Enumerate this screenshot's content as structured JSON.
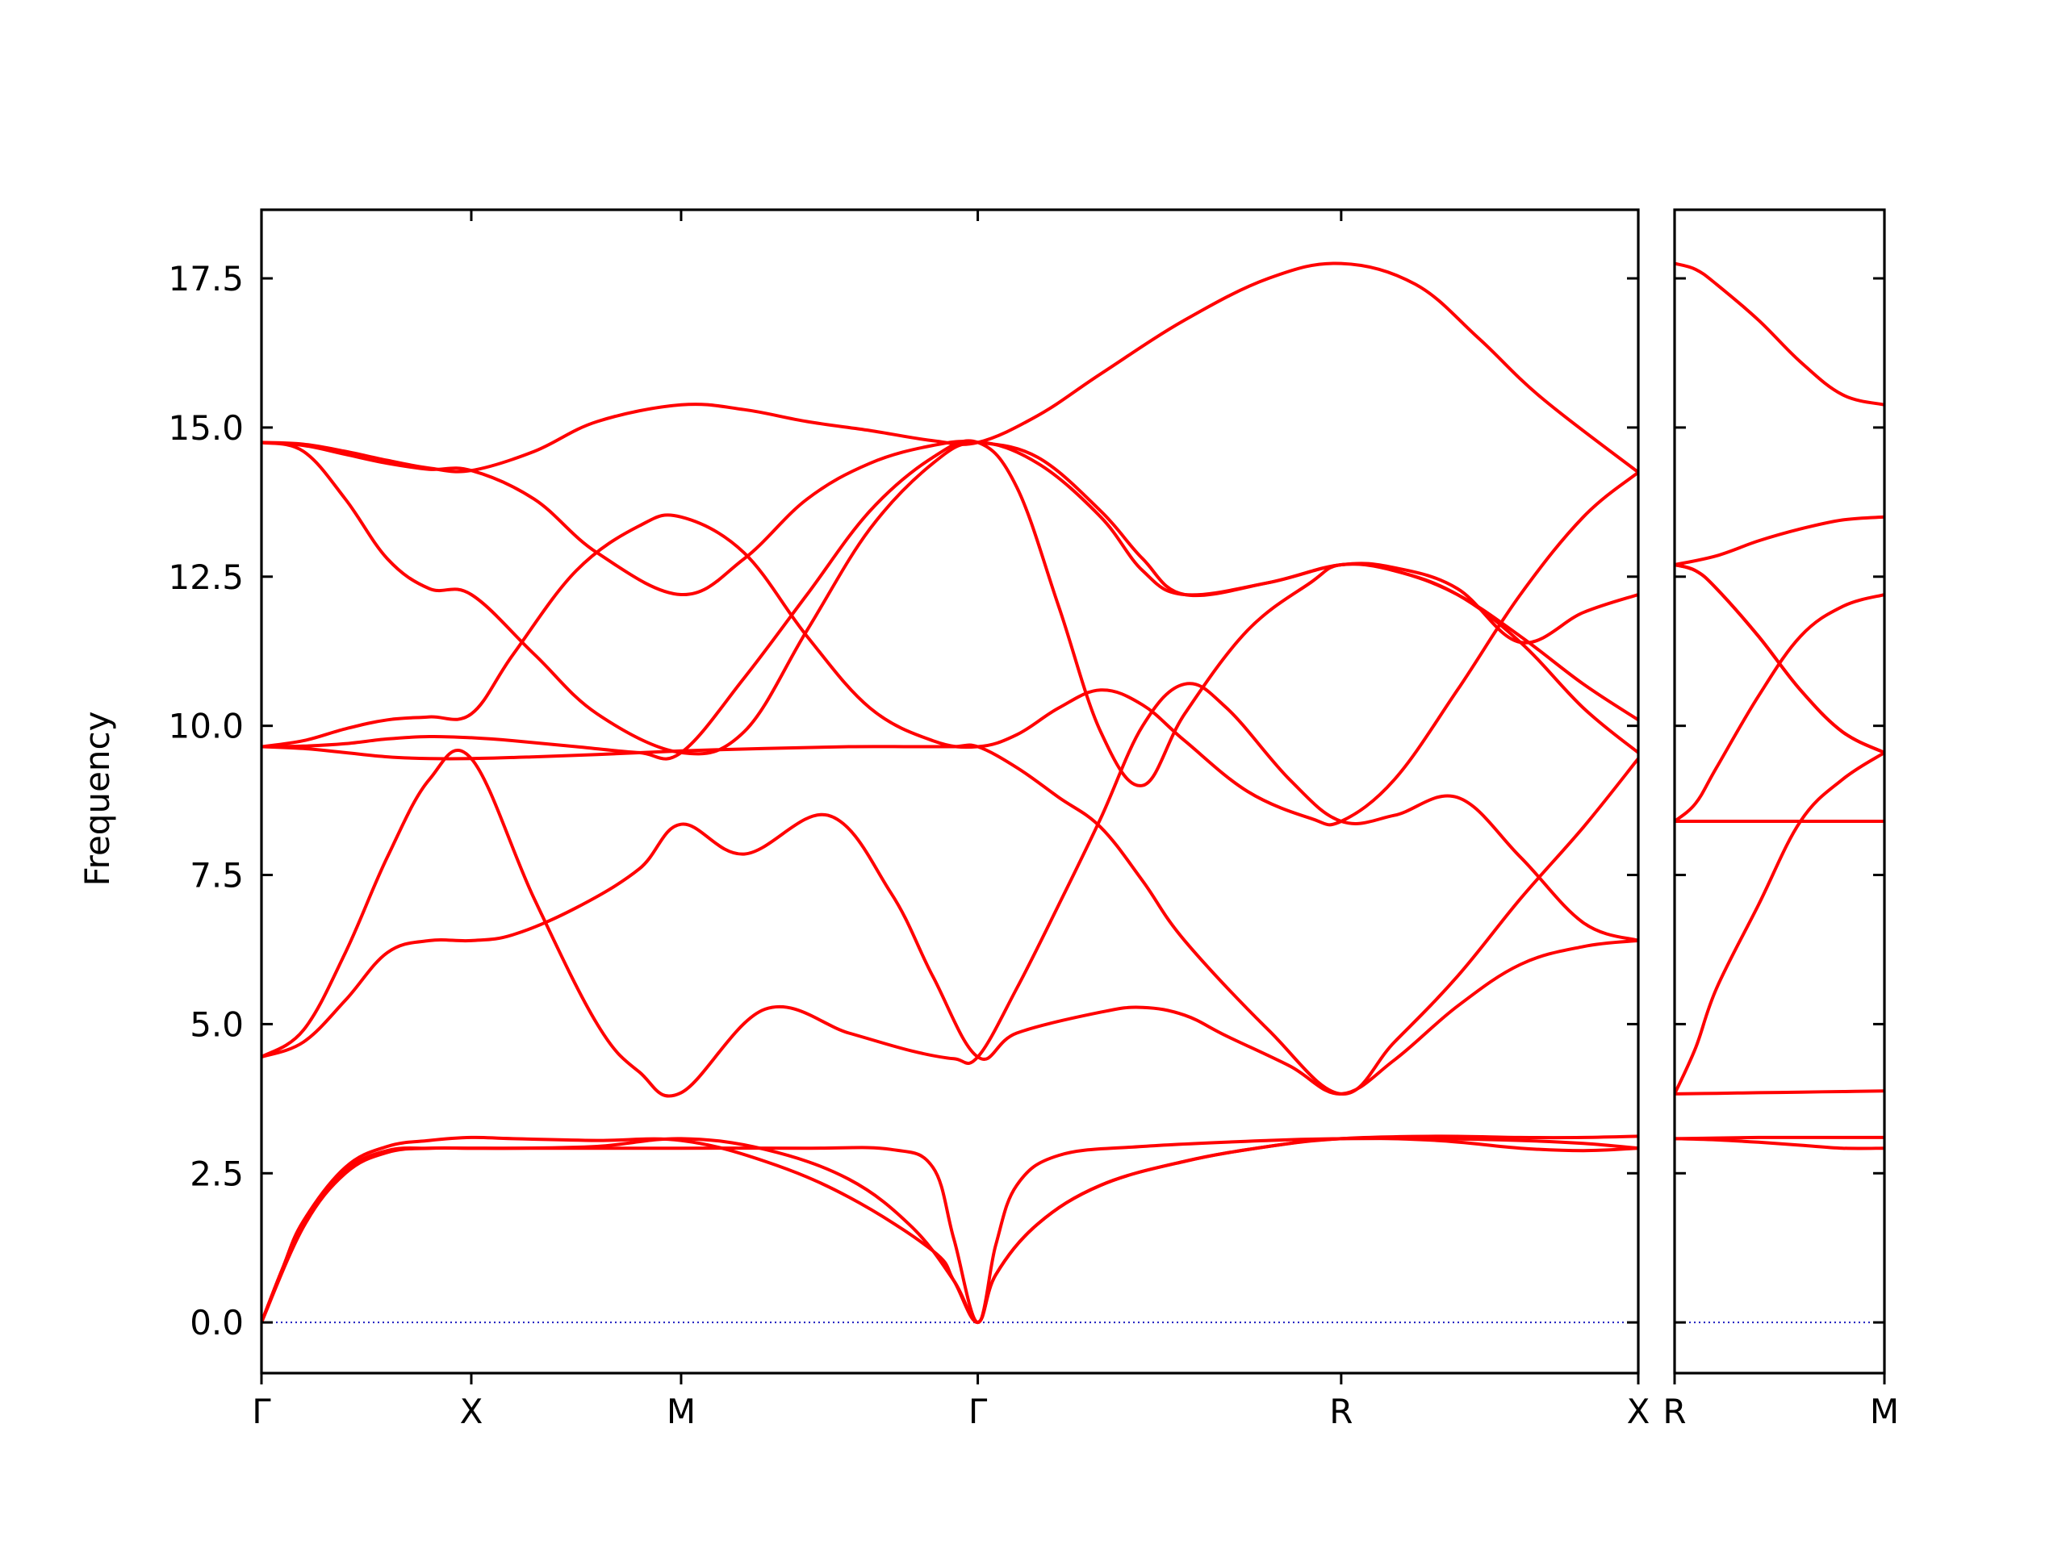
{
  "colors": {
    "band": "#ff0000",
    "zero_line": "#1f1fc0",
    "frame": "#000000"
  },
  "chart_data": {
    "type": "line",
    "title": "",
    "ylabel": "Frequency",
    "ylim": [
      -0.85,
      18.65
    ],
    "yticks": [
      "0.0",
      "2.5",
      "5.0",
      "7.5",
      "10.0",
      "12.5",
      "15.0",
      "17.5"
    ],
    "ytick_values": [
      0,
      2.5,
      5,
      7.5,
      10,
      12.5,
      15,
      17.5
    ],
    "zero_line": 0,
    "grid": false,
    "legend": "none",
    "panels": [
      {
        "path_labels": [
          "Γ",
          "X",
          "M",
          "Γ",
          "R",
          "X"
        ],
        "path_positions": [
          0,
          0.5,
          1.0,
          1.707,
          2.573,
          3.281
        ],
        "series": [
          {
            "x": [
              0,
              0.1,
              0.2,
              0.3,
              0.4,
              0.5,
              0.6,
              0.75,
              0.9,
              1.0,
              1.3,
              1.5,
              1.6,
              1.65,
              1.707,
              1.75,
              1.8,
              1.9,
              2.1,
              2.4,
              2.573,
              2.8,
              3.0,
              3.15,
              3.281
            ],
            "values": [
              0,
              1.6,
              2.5,
              2.85,
              2.92,
              2.92,
              2.92,
              2.92,
              2.92,
              2.92,
              2.92,
              2.9,
              2.6,
              1.4,
              0,
              1.3,
              2.3,
              2.8,
              2.95,
              3.05,
              3.08,
              3.08,
              3.05,
              3.0,
              2.92
            ]
          },
          {
            "x": [
              0,
              0.05,
              0.1,
              0.2,
              0.3,
              0.4,
              0.5,
              0.6,
              0.8,
              1.0,
              1.2,
              1.4,
              1.55,
              1.65,
              1.707,
              1.75,
              1.85,
              2.0,
              2.2,
              2.4,
              2.573,
              2.8,
              3.0,
              3.15,
              3.281
            ],
            "values": [
              0,
              0.9,
              1.7,
              2.55,
              2.88,
              2.92,
              2.92,
              2.92,
              2.95,
              3.08,
              2.9,
              2.4,
              1.6,
              0.7,
              0,
              0.8,
              1.65,
              2.3,
              2.7,
              2.95,
              3.08,
              3.05,
              2.92,
              2.88,
              2.92
            ]
          },
          {
            "x": [
              0,
              0.05,
              0.1,
              0.2,
              0.3,
              0.4,
              0.5,
              0.6,
              0.8,
              1.0,
              1.2,
              1.4,
              1.6,
              1.65,
              1.707,
              1.75,
              1.85,
              2.0,
              2.2,
              2.4,
              2.573,
              2.8,
              3.0,
              3.15,
              3.281
            ],
            "values": [
              0,
              0.9,
              1.7,
              2.6,
              2.95,
              3.05,
              3.1,
              3.08,
              3.05,
              3.05,
              2.7,
              2.1,
              1.2,
              0.7,
              0,
              0.8,
              1.65,
              2.3,
              2.7,
              2.95,
              3.08,
              3.12,
              3.1,
              3.1,
              3.12
            ]
          },
          {
            "x": [
              0,
              0.1,
              0.2,
              0.3,
              0.4,
              0.5,
              0.6,
              0.75,
              0.9,
              1.0,
              1.15,
              1.35,
              1.5,
              1.6,
              1.707,
              1.8,
              2.0,
              2.1,
              2.2,
              2.3,
              2.45,
              2.573,
              2.7,
              2.85,
              3.0,
              3.15,
              3.281
            ],
            "values": [
              4.45,
              4.7,
              5.4,
              6.2,
              6.4,
              6.4,
              6.5,
              6.95,
              7.6,
              8.35,
              7.85,
              8.5,
              7.2,
              5.8,
              4.45,
              4.85,
              5.2,
              5.28,
              5.15,
              4.8,
              4.3,
              3.83,
              4.4,
              5.3,
              6.0,
              6.3,
              6.4
            ]
          },
          {
            "x": [
              0,
              0.1,
              0.2,
              0.3,
              0.4,
              0.5,
              0.65,
              0.8,
              0.9,
              1.0,
              1.2,
              1.4,
              1.55,
              1.65,
              1.707,
              1.8,
              1.9,
              2.0,
              2.1,
              2.2,
              2.3,
              2.45,
              2.573,
              2.7,
              2.85,
              3.0,
              3.15,
              3.281
            ],
            "values": [
              4.45,
              4.9,
              6.2,
              7.8,
              9.1,
              9.45,
              7.1,
              5.0,
              4.2,
              3.85,
              5.25,
              4.85,
              4.55,
              4.42,
              4.45,
              5.6,
              7.0,
              8.45,
              10.0,
              10.7,
              10.3,
              9.1,
              8.4,
              8.5,
              8.8,
              7.8,
              6.7,
              6.4
            ]
          },
          {
            "x": [
              0,
              0.1,
              0.2,
              0.3,
              0.4,
              0.5,
              0.65,
              0.8,
              1.0,
              1.2,
              1.4,
              1.55,
              1.65,
              1.707,
              1.8,
              1.9,
              2.0,
              2.1,
              2.2,
              2.4,
              2.573,
              2.7,
              2.85,
              3.0,
              3.15,
              3.281
            ],
            "values": [
              9.65,
              9.62,
              9.55,
              9.48,
              9.45,
              9.45,
              9.48,
              9.52,
              9.58,
              9.62,
              9.65,
              9.65,
              9.65,
              9.65,
              9.3,
              8.8,
              8.3,
              7.4,
              6.4,
              4.9,
              3.83,
              4.7,
              5.8,
              7.1,
              8.3,
              9.45
            ]
          },
          {
            "x": [
              0,
              0.1,
              0.2,
              0.3,
              0.4,
              0.5,
              0.6,
              0.75,
              0.9,
              1.0,
              1.15,
              1.3,
              1.45,
              1.6,
              1.707,
              1.8,
              1.9,
              2.0,
              2.1,
              2.2,
              2.35,
              2.5,
              2.573,
              2.7,
              2.85,
              3.0,
              3.15,
              3.281
            ],
            "values": [
              9.65,
              9.75,
              9.95,
              10.1,
              10.15,
              10.2,
              11.2,
              12.6,
              13.35,
              13.5,
              12.9,
              11.5,
              10.3,
              9.75,
              9.65,
              9.85,
              10.3,
              10.6,
              10.35,
              9.75,
              8.9,
              8.45,
              8.4,
              9.1,
              10.6,
              12.2,
              13.5,
              14.25
            ]
          },
          {
            "x": [
              0,
              0.1,
              0.2,
              0.3,
              0.4,
              0.5,
              0.6,
              0.75,
              0.9,
              1.0,
              1.15,
              1.3,
              1.45,
              1.6,
              1.707,
              1.8,
              1.9,
              2.0,
              2.1,
              2.2,
              2.35,
              2.5,
              2.573,
              2.7,
              2.85,
              3.0,
              3.15,
              3.281
            ],
            "values": [
              9.65,
              9.66,
              9.7,
              9.78,
              9.82,
              9.8,
              9.75,
              9.65,
              9.55,
              9.55,
              10.8,
              12.2,
              13.6,
              14.5,
              14.75,
              14.0,
              12.0,
              9.9,
              9.0,
              10.2,
              11.6,
              12.4,
              12.7,
              12.6,
              12.2,
              11.5,
              10.7,
              10.1
            ]
          },
          {
            "x": [
              0,
              0.1,
              0.2,
              0.3,
              0.4,
              0.5,
              0.65,
              0.8,
              1.0,
              1.15,
              1.3,
              1.45,
              1.6,
              1.707,
              1.85,
              2.0,
              2.1,
              2.2,
              2.4,
              2.573,
              2.7,
              2.85,
              3.0,
              3.15,
              3.281
            ],
            "values": [
              14.75,
              14.6,
              13.8,
              12.8,
              12.3,
              12.2,
              11.2,
              10.2,
              9.55,
              9.9,
              11.6,
              13.3,
              14.4,
              14.75,
              14.4,
              13.5,
              12.6,
              12.2,
              12.4,
              12.7,
              12.6,
              12.2,
              11.4,
              10.3,
              9.55
            ]
          },
          {
            "x": [
              0,
              0.1,
              0.2,
              0.3,
              0.4,
              0.5,
              0.65,
              0.8,
              1.0,
              1.15,
              1.3,
              1.45,
              1.6,
              1.707,
              1.85,
              2.0,
              2.1,
              2.2,
              2.4,
              2.573,
              2.7,
              2.85,
              3.0,
              3.15,
              3.281
            ],
            "values": [
              14.75,
              14.7,
              14.55,
              14.4,
              14.3,
              14.28,
              13.8,
              12.9,
              12.2,
              12.8,
              13.8,
              14.4,
              14.7,
              14.75,
              14.5,
              13.6,
              12.8,
              12.2,
              12.4,
              12.7,
              12.65,
              12.3,
              11.4,
              11.9,
              12.2
            ]
          },
          {
            "x": [
              0,
              0.1,
              0.2,
              0.3,
              0.4,
              0.5,
              0.65,
              0.8,
              1.0,
              1.15,
              1.3,
              1.45,
              1.6,
              1.707,
              1.85,
              2.0,
              2.2,
              2.4,
              2.573,
              2.75,
              2.9,
              3.05,
              3.281
            ],
            "values": [
              14.75,
              14.72,
              14.6,
              14.45,
              14.32,
              14.28,
              14.6,
              15.1,
              15.38,
              15.3,
              15.1,
              14.95,
              14.78,
              14.75,
              15.2,
              15.9,
              16.8,
              17.5,
              17.75,
              17.4,
              16.5,
              15.5,
              14.25
            ]
          }
        ]
      },
      {
        "path_labels": [
          "R",
          "M"
        ],
        "path_positions": [
          0,
          0.5
        ],
        "series": [
          {
            "x": [
              0,
              0.1,
              0.2,
              0.3,
              0.4,
              0.5
            ],
            "values": [
              3.08,
              3.06,
              3.02,
              2.97,
              2.92,
              2.92
            ]
          },
          {
            "x": [
              0,
              0.1,
              0.2,
              0.3,
              0.4,
              0.5
            ],
            "values": [
              3.08,
              3.09,
              3.1,
              3.1,
              3.1,
              3.1
            ]
          },
          {
            "x": [
              0,
              0.1,
              0.2,
              0.3,
              0.4,
              0.5
            ],
            "values": [
              3.83,
              3.84,
              3.85,
              3.86,
              3.87,
              3.88
            ]
          },
          {
            "x": [
              0,
              0.05,
              0.1,
              0.2,
              0.3,
              0.4,
              0.5
            ],
            "values": [
              3.83,
              4.6,
              5.6,
              7.0,
              8.4,
              9.1,
              9.55
            ]
          },
          {
            "x": [
              0,
              0.1,
              0.2,
              0.3,
              0.4,
              0.5
            ],
            "values": [
              8.4,
              8.4,
              8.4,
              8.4,
              8.4,
              8.4
            ]
          },
          {
            "x": [
              0,
              0.05,
              0.1,
              0.2,
              0.3,
              0.4,
              0.5
            ],
            "values": [
              8.4,
              8.7,
              9.3,
              10.5,
              11.5,
              12.0,
              12.2
            ]
          },
          {
            "x": [
              0,
              0.05,
              0.1,
              0.2,
              0.3,
              0.4,
              0.5
            ],
            "values": [
              12.7,
              12.6,
              12.3,
              11.5,
              10.6,
              9.9,
              9.55
            ]
          },
          {
            "x": [
              0,
              0.05,
              0.1,
              0.2,
              0.3,
              0.4,
              0.5
            ],
            "values": [
              12.7,
              12.6,
              12.3,
              11.5,
              10.6,
              9.9,
              9.55
            ]
          },
          {
            "x": [
              0,
              0.1,
              0.2,
              0.3,
              0.4,
              0.5
            ],
            "values": [
              12.7,
              12.85,
              13.1,
              13.3,
              13.45,
              13.5
            ]
          },
          {
            "x": [
              0,
              0.05,
              0.1,
              0.2,
              0.3,
              0.4,
              0.5
            ],
            "values": [
              17.75,
              17.65,
              17.4,
              16.8,
              16.1,
              15.55,
              15.38
            ]
          }
        ]
      }
    ]
  }
}
